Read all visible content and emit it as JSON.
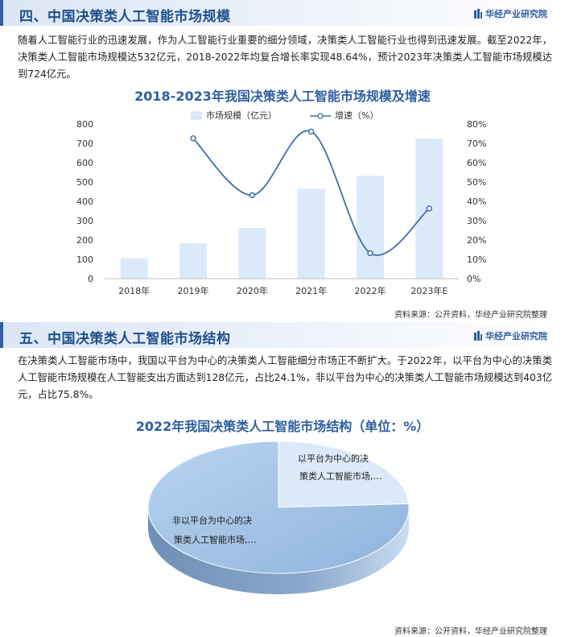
{
  "brand": {
    "name": "华经产业研究院"
  },
  "section4": {
    "title": "四、中国决策类人工智能市场规模",
    "paragraph": "随着人工智能行业的迅速发展，作为人工智能行业重要的细分领域，决策类人工智能行业也得到迅速发展。截至2022年，决策类人工智能市场规模达532亿元，2018-2022年均复合增长率实现48.64%，预计2023年决策类人工智能市场规模达到724亿元。",
    "chart_title": "2018-2023年我国决策类人工智能市场规模及增速",
    "source": "资料来源：公开资料，华经产业研究院整理"
  },
  "section5": {
    "title": "五、中国决策类人工智能市场结构",
    "paragraph": "在决策类人工智能市场中，我国以平台为中心的决策类人工智能细分市场正不断扩大。于2022年，以平台为中心的决策类人工智能市场规模在人工智能支出方面达到128亿元，占比24.1%，非以平台为中心的决策类人工智能市场规模达到403亿元，占比75.8%。",
    "chart_title": "2022年我国决策类人工智能市场结构（单位：%）",
    "source": "资料来源：公开资料，华经产业研究院整理"
  },
  "chart_data": [
    {
      "type": "bar+line",
      "title": "2018-2023年我国决策类人工智能市场规模及增速",
      "categories": [
        "2018年",
        "2019年",
        "2020年",
        "2021年",
        "2022年",
        "2023年E"
      ],
      "series": [
        {
          "name": "市场规模（亿元）",
          "type": "bar",
          "axis": "left",
          "values": [
            105,
            183,
            262,
            465,
            532,
            724
          ]
        },
        {
          "name": "增速（%）",
          "type": "line",
          "axis": "right",
          "values": [
            null,
            72.6,
            43.2,
            76.1,
            13.2,
            36.3
          ]
        }
      ],
      "y_left": {
        "min": 0,
        "max": 800,
        "ticks": [
          0,
          100,
          200,
          300,
          400,
          500,
          600,
          700,
          800
        ]
      },
      "y_right": {
        "min": 0,
        "max": 80,
        "ticks": [
          "0%",
          "10%",
          "20%",
          "30%",
          "40%",
          "50%",
          "60%",
          "70%",
          "80%"
        ]
      },
      "legend": "top-center",
      "colors": {
        "bar": "#dbeafb",
        "line": "#3f6ea8"
      }
    },
    {
      "type": "pie",
      "title": "2022年我国决策类人工智能市场结构（单位：%）",
      "slices": [
        {
          "label_line1": "以平台为中心的决",
          "label_line2": "策类人工智能市场,…",
          "value": 24.1,
          "color": "#dbe9f8"
        },
        {
          "label_line1": "非以平台为中心的决",
          "label_line2": "策类人工智能市场,…",
          "value": 75.8,
          "color": "#9fc0e4"
        }
      ]
    }
  ]
}
